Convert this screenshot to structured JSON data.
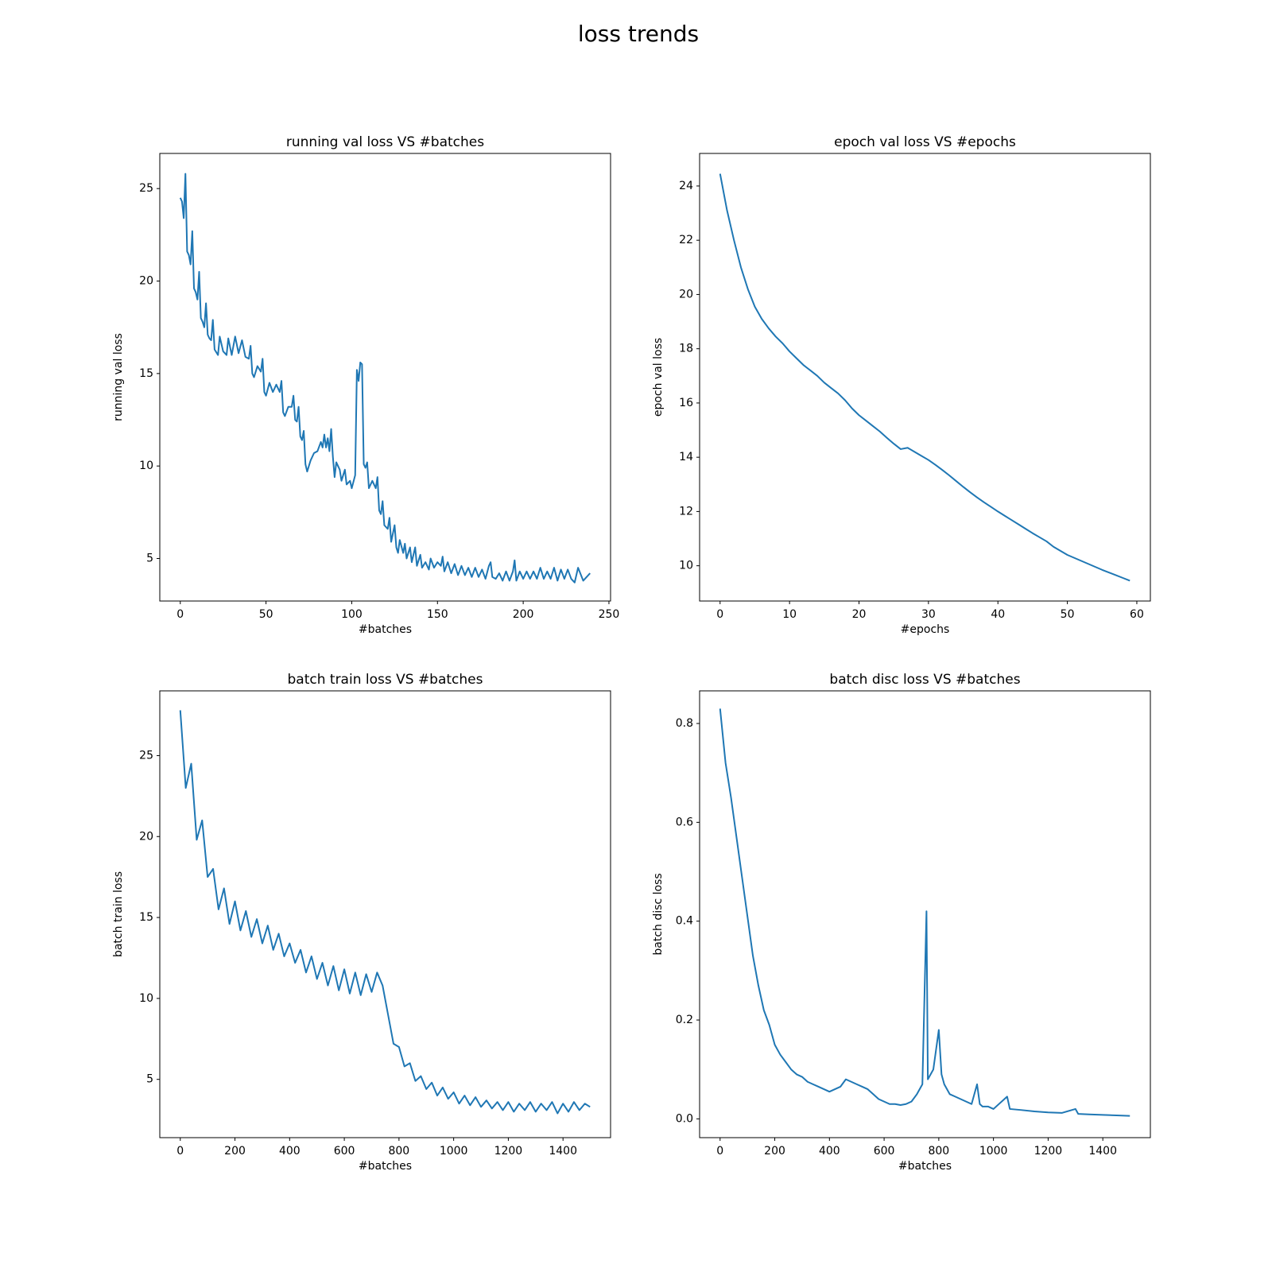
{
  "title": "loss trends",
  "chart_data": [
    {
      "type": "line",
      "title": "running val loss VS #batches",
      "xlabel": "#batches",
      "ylabel": "running val loss",
      "color": "#1f77b4",
      "xlim": [
        -11.95,
        250.95
      ],
      "ylim": [
        2.7,
        26.9
      ],
      "xticks": [
        0,
        50,
        100,
        150,
        200,
        250
      ],
      "yticks": [
        5,
        10,
        15,
        20,
        25
      ],
      "x": [
        0,
        1,
        2,
        3,
        4,
        5,
        6,
        7,
        8,
        9,
        10,
        11,
        12,
        13,
        14,
        15,
        16,
        17,
        18,
        19,
        20,
        22,
        23,
        25,
        27,
        28,
        30,
        32,
        34,
        36,
        38,
        40,
        41,
        42,
        43,
        45,
        47,
        48,
        49,
        50,
        52,
        54,
        56,
        58,
        59,
        60,
        61,
        63,
        65,
        66,
        67,
        68,
        69,
        70,
        71,
        72,
        73,
        74,
        76,
        78,
        80,
        82,
        83,
        84,
        85,
        86,
        87,
        88,
        89,
        90,
        91,
        93,
        94,
        96,
        97,
        99,
        100,
        102,
        103,
        104,
        105,
        106,
        107,
        108,
        109,
        110,
        112,
        114,
        115,
        116,
        117,
        118,
        119,
        121,
        122,
        123,
        125,
        126,
        127,
        128,
        130,
        131,
        132,
        134,
        135,
        137,
        138,
        140,
        141,
        143,
        145,
        146,
        148,
        150,
        152,
        153,
        154,
        156,
        158,
        160,
        162,
        164,
        166,
        168,
        170,
        172,
        174,
        176,
        178,
        180,
        181,
        182,
        184,
        186,
        188,
        190,
        192,
        194,
        195,
        196,
        198,
        200,
        202,
        204,
        206,
        208,
        210,
        212,
        214,
        216,
        218,
        220,
        222,
        224,
        226,
        228,
        230,
        232,
        235,
        239
      ],
      "values": [
        24.5,
        24.3,
        23.4,
        25.8,
        21.6,
        21.4,
        20.9,
        22.7,
        19.6,
        19.4,
        19.0,
        20.5,
        18.0,
        17.8,
        17.5,
        18.8,
        17.1,
        16.9,
        16.8,
        17.9,
        16.3,
        16.0,
        17.0,
        16.2,
        16.0,
        16.9,
        16.0,
        17.0,
        16.1,
        16.8,
        15.9,
        15.8,
        16.5,
        15.0,
        14.8,
        15.4,
        15.1,
        15.8,
        14.0,
        13.8,
        14.5,
        14.0,
        14.4,
        14.0,
        14.6,
        12.9,
        12.7,
        13.2,
        13.2,
        13.8,
        12.5,
        12.4,
        13.2,
        11.6,
        11.4,
        11.9,
        10.1,
        9.7,
        10.3,
        10.7,
        10.8,
        11.3,
        11.0,
        11.7,
        11.0,
        11.5,
        10.8,
        12.0,
        10.5,
        9.4,
        10.2,
        9.8,
        9.2,
        9.8,
        9.0,
        9.2,
        8.8,
        9.5,
        15.2,
        14.6,
        15.6,
        15.5,
        10.1,
        9.9,
        10.2,
        8.8,
        9.2,
        8.8,
        9.4,
        7.6,
        7.4,
        8.1,
        6.8,
        6.6,
        7.2,
        5.9,
        6.8,
        5.6,
        5.3,
        6.0,
        5.3,
        5.8,
        5.0,
        5.6,
        4.8,
        5.6,
        4.6,
        5.2,
        4.5,
        4.8,
        4.4,
        5.0,
        4.5,
        4.8,
        4.6,
        5.1,
        4.3,
        4.8,
        4.2,
        4.7,
        4.1,
        4.6,
        4.1,
        4.5,
        4.0,
        4.5,
        4.0,
        4.4,
        3.9,
        4.6,
        4.8,
        4.0,
        3.9,
        4.2,
        3.8,
        4.3,
        3.8,
        4.3,
        4.9,
        3.8,
        4.3,
        3.9,
        4.3,
        3.9,
        4.3,
        3.9,
        4.5,
        3.9,
        4.3,
        3.9,
        4.5,
        3.8,
        4.4,
        3.9,
        4.4,
        3.9,
        3.7,
        4.5,
        3.8,
        4.2
      ]
    },
    {
      "type": "line",
      "title": "epoch val loss VS #epochs",
      "xlabel": "#epochs",
      "ylabel": "epoch val loss",
      "color": "#1f77b4",
      "xlim": [
        -2.95,
        61.95
      ],
      "ylim": [
        8.7,
        25.2
      ],
      "xticks": [
        0,
        10,
        20,
        30,
        40,
        50,
        60
      ],
      "yticks": [
        10,
        12,
        14,
        16,
        18,
        20,
        22,
        24
      ],
      "x": [
        0,
        1,
        2,
        3,
        4,
        5,
        6,
        7,
        8,
        9,
        10,
        11,
        12,
        13,
        14,
        15,
        16,
        17,
        18,
        19,
        20,
        21,
        22,
        23,
        24,
        25,
        26,
        27,
        28,
        29,
        30,
        31,
        32,
        33,
        34,
        35,
        36,
        37,
        38,
        39,
        40,
        41,
        42,
        43,
        44,
        45,
        46,
        47,
        48,
        49,
        50,
        51,
        52,
        53,
        54,
        55,
        56,
        57,
        58,
        59
      ],
      "values": [
        24.45,
        23.1,
        22.0,
        21.0,
        20.2,
        19.55,
        19.1,
        18.75,
        18.45,
        18.2,
        17.9,
        17.65,
        17.4,
        17.2,
        17.0,
        16.75,
        16.55,
        16.35,
        16.1,
        15.8,
        15.55,
        15.35,
        15.15,
        14.95,
        14.72,
        14.5,
        14.3,
        14.35,
        14.2,
        14.05,
        13.9,
        13.72,
        13.53,
        13.33,
        13.12,
        12.91,
        12.71,
        12.52,
        12.34,
        12.17,
        12.0,
        11.84,
        11.68,
        11.52,
        11.36,
        11.2,
        11.05,
        10.9,
        10.7,
        10.55,
        10.4,
        10.29,
        10.18,
        10.07,
        9.96,
        9.85,
        9.75,
        9.65,
        9.55,
        9.45
      ]
    },
    {
      "type": "line",
      "title": "batch train loss VS #batches",
      "xlabel": "#batches",
      "ylabel": "batch train loss",
      "color": "#1f77b4",
      "xlim": [
        -74.95,
        1573.95
      ],
      "ylim": [
        1.4,
        29.0
      ],
      "xticks": [
        0,
        200,
        400,
        600,
        800,
        1000,
        1200,
        1400
      ],
      "yticks": [
        5,
        10,
        15,
        20,
        25
      ],
      "x": [
        0,
        20,
        40,
        60,
        80,
        100,
        120,
        140,
        160,
        180,
        200,
        220,
        240,
        260,
        280,
        300,
        320,
        340,
        360,
        380,
        400,
        420,
        440,
        460,
        480,
        500,
        520,
        540,
        560,
        580,
        600,
        620,
        640,
        660,
        680,
        700,
        720,
        740,
        760,
        780,
        800,
        820,
        840,
        860,
        880,
        900,
        920,
        940,
        960,
        980,
        1000,
        1020,
        1040,
        1060,
        1080,
        1100,
        1120,
        1140,
        1160,
        1180,
        1200,
        1220,
        1240,
        1260,
        1280,
        1300,
        1320,
        1340,
        1360,
        1380,
        1400,
        1420,
        1440,
        1460,
        1480,
        1499
      ],
      "values": [
        27.8,
        23.0,
        24.5,
        19.8,
        21.0,
        17.5,
        18.0,
        15.5,
        16.8,
        14.6,
        16.0,
        14.2,
        15.4,
        13.8,
        14.9,
        13.4,
        14.5,
        13.0,
        14.0,
        12.6,
        13.4,
        12.2,
        13.0,
        11.6,
        12.6,
        11.2,
        12.2,
        10.8,
        12.0,
        10.5,
        11.8,
        10.3,
        11.6,
        10.2,
        11.5,
        10.4,
        11.6,
        10.8,
        9.0,
        7.2,
        7.0,
        5.8,
        6.0,
        4.9,
        5.2,
        4.4,
        4.8,
        4.0,
        4.5,
        3.8,
        4.2,
        3.5,
        4.0,
        3.4,
        3.9,
        3.3,
        3.7,
        3.2,
        3.6,
        3.1,
        3.6,
        3.0,
        3.5,
        3.1,
        3.6,
        3.0,
        3.5,
        3.1,
        3.6,
        2.9,
        3.5,
        3.0,
        3.6,
        3.1,
        3.5,
        3.3
      ]
    },
    {
      "type": "line",
      "title": "batch disc loss VS #batches",
      "xlabel": "#batches",
      "ylabel": "batch disc loss",
      "color": "#1f77b4",
      "xlim": [
        -74.95,
        1573.95
      ],
      "ylim": [
        -0.038,
        0.866
      ],
      "xticks": [
        0,
        200,
        400,
        600,
        800,
        1000,
        1200,
        1400
      ],
      "yticks": [
        {
          "value": 0,
          "label": "0.0"
        },
        0.2,
        0.4,
        0.6,
        0.8
      ],
      "x": [
        0,
        20,
        40,
        60,
        80,
        100,
        120,
        140,
        160,
        180,
        200,
        220,
        240,
        260,
        280,
        300,
        320,
        340,
        360,
        380,
        400,
        420,
        440,
        460,
        480,
        500,
        520,
        540,
        560,
        580,
        600,
        620,
        640,
        660,
        680,
        700,
        720,
        740,
        755,
        760,
        780,
        800,
        810,
        820,
        840,
        860,
        880,
        900,
        920,
        940,
        950,
        960,
        980,
        1000,
        1050,
        1060,
        1100,
        1150,
        1200,
        1250,
        1300,
        1310,
        1350,
        1400,
        1450,
        1499
      ],
      "values": [
        0.83,
        0.72,
        0.65,
        0.57,
        0.49,
        0.41,
        0.33,
        0.27,
        0.22,
        0.19,
        0.15,
        0.13,
        0.115,
        0.1,
        0.09,
        0.085,
        0.075,
        0.07,
        0.065,
        0.06,
        0.055,
        0.06,
        0.065,
        0.08,
        0.075,
        0.07,
        0.065,
        0.06,
        0.05,
        0.04,
        0.035,
        0.03,
        0.03,
        0.028,
        0.03,
        0.035,
        0.05,
        0.07,
        0.42,
        0.08,
        0.1,
        0.18,
        0.09,
        0.07,
        0.05,
        0.045,
        0.04,
        0.035,
        0.03,
        0.07,
        0.03,
        0.025,
        0.025,
        0.02,
        0.045,
        0.02,
        0.018,
        0.015,
        0.013,
        0.012,
        0.02,
        0.01,
        0.009,
        0.008,
        0.007,
        0.006
      ]
    }
  ]
}
